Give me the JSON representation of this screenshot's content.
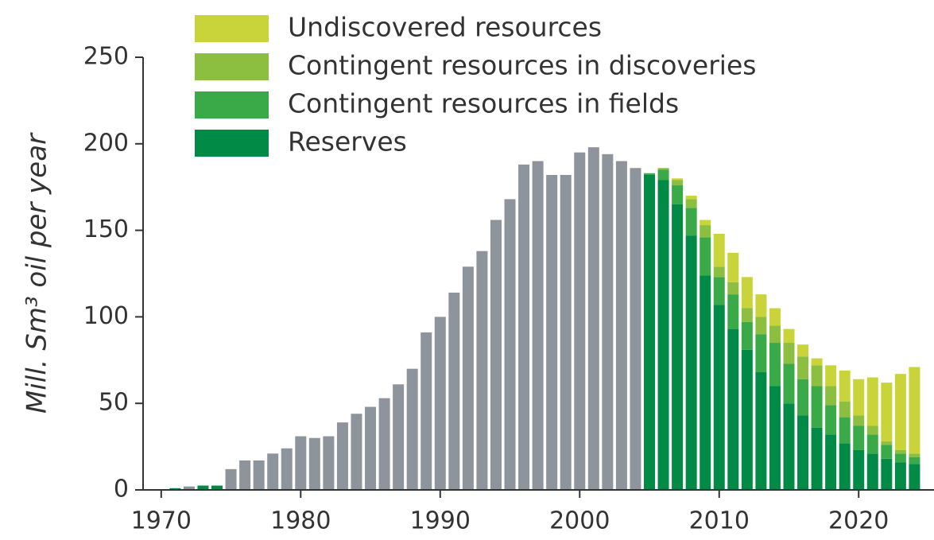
{
  "chart_data": {
    "type": "bar",
    "stacked": true,
    "y_label": "Mill. Sm³ oil per year",
    "x": [
      1971,
      1972,
      1973,
      1974,
      1975,
      1976,
      1977,
      1978,
      1979,
      1980,
      1981,
      1982,
      1983,
      1984,
      1985,
      1986,
      1987,
      1988,
      1989,
      1990,
      1991,
      1992,
      1993,
      1994,
      1995,
      1996,
      1997,
      1998,
      1999,
      2000,
      2001,
      2002,
      2003,
      2004,
      2005,
      2006,
      2007,
      2008,
      2009,
      2010,
      2011,
      2012,
      2013,
      2014,
      2015,
      2016,
      2017,
      2018,
      2019,
      2020,
      2021,
      2022,
      2023,
      2024
    ],
    "xlim": [
      1968.7,
      2025.4
    ],
    "xticks": [
      1970,
      1980,
      1990,
      2000,
      2010,
      2020
    ],
    "ylim": [
      0,
      250
    ],
    "yticks": [
      0,
      50,
      100,
      150,
      200,
      250
    ],
    "series": [
      {
        "name": "Undiscovered resources",
        "color": "#c8d43a",
        "values": [
          null,
          null,
          null,
          null,
          null,
          null,
          null,
          null,
          null,
          null,
          null,
          null,
          null,
          null,
          null,
          null,
          null,
          null,
          null,
          null,
          null,
          null,
          null,
          null,
          null,
          null,
          null,
          null,
          null,
          null,
          null,
          null,
          null,
          null,
          0,
          0,
          1,
          2,
          3,
          19,
          17,
          18,
          13,
          10,
          8,
          7,
          4,
          12,
          18,
          21,
          28,
          34,
          44,
          50
        ]
      },
      {
        "name": "Contingent resources in discoveries",
        "color": "#8cbf3f",
        "values": [
          null,
          null,
          null,
          null,
          null,
          null,
          null,
          null,
          null,
          null,
          null,
          null,
          null,
          null,
          null,
          null,
          null,
          null,
          null,
          null,
          null,
          null,
          null,
          null,
          null,
          null,
          null,
          null,
          null,
          null,
          null,
          null,
          null,
          null,
          0,
          1,
          3,
          5,
          7,
          6,
          7,
          8,
          10,
          10,
          12,
          13,
          12,
          11,
          9,
          6,
          5,
          2,
          2,
          2
        ]
      },
      {
        "name": "Contingent resources in fields",
        "color": "#3aaa48",
        "values": [
          null,
          null,
          null,
          null,
          null,
          null,
          null,
          null,
          null,
          null,
          null,
          null,
          null,
          null,
          null,
          null,
          null,
          null,
          null,
          null,
          null,
          null,
          null,
          null,
          null,
          null,
          null,
          null,
          null,
          null,
          null,
          null,
          null,
          null,
          1,
          6,
          11,
          16,
          22,
          16,
          20,
          16,
          22,
          25,
          23,
          21,
          24,
          17,
          15,
          14,
          11,
          8,
          5,
          4
        ]
      },
      {
        "name": "Reserves",
        "color": "#008a45",
        "values": [
          1,
          null,
          2.5,
          2.5,
          null,
          null,
          null,
          null,
          null,
          null,
          null,
          null,
          null,
          null,
          null,
          null,
          null,
          null,
          null,
          null,
          null,
          null,
          null,
          null,
          null,
          null,
          null,
          null,
          null,
          null,
          null,
          null,
          null,
          null,
          182,
          179,
          165,
          147,
          124,
          107,
          93,
          81,
          68,
          60,
          50,
          43,
          36,
          32,
          27,
          23,
          21,
          18,
          16,
          15
        ]
      },
      {
        "color": "#8e949c",
        "values": [
          null,
          2,
          null,
          null,
          12,
          17,
          17,
          21,
          24,
          31,
          30,
          31,
          39,
          44,
          48,
          53,
          61,
          70,
          91,
          100,
          114,
          129,
          138,
          156,
          168,
          188,
          190,
          182,
          182,
          195,
          198,
          194,
          190,
          186,
          null,
          null,
          null,
          null,
          null,
          null,
          null,
          null,
          null,
          null,
          null,
          null,
          null,
          null,
          null,
          null,
          null,
          null,
          null,
          null
        ]
      }
    ]
  }
}
